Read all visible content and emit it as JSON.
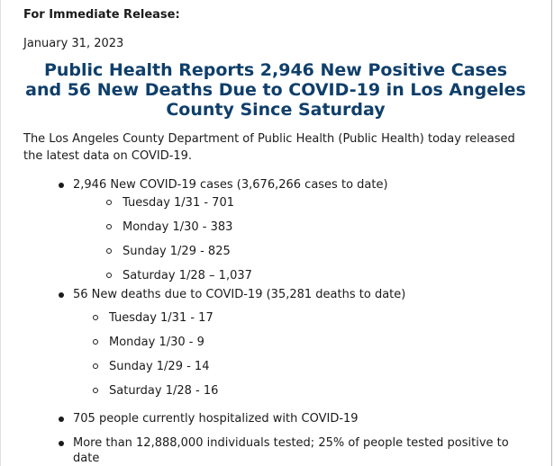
{
  "release_label": "For Immediate Release:",
  "date": "January 31, 2023",
  "headline": "Public Health Reports 2,946 New Positive Cases and 56 New Deaths Due to COVID-19 in Los Angeles County Since Saturday",
  "intro": "The Los Angeles County Department of Public Health (Public Health) today released the latest data on COVID-19.",
  "cases": {
    "summary": "2,946 New COVID-19 cases (3,676,266 cases to date)",
    "items": [
      "Tuesday 1/31 - 701",
      "Monday 1/30 - 383",
      "Sunday 1/29 - 825",
      "Saturday 1/28 – 1,037"
    ]
  },
  "deaths": {
    "summary": "56 New deaths due to COVID-19 (35,281 deaths to date)",
    "items": [
      "Tuesday 1/31 - 17",
      "Monday 1/30 - 9",
      "Sunday 1/29 - 14",
      "Saturday 1/28 - 16"
    ]
  },
  "hospitalized": "705 people currently hospitalized with COVID-19",
  "tested": "More than 12,888,000 individuals tested; 25% of people tested positive to date"
}
